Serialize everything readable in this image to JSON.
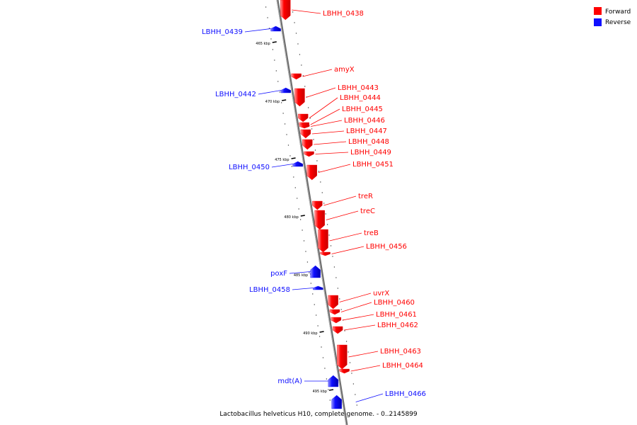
{
  "caption": "Lactobacillus helveticus H10, complete genome. - 0..2145899",
  "legend": [
    {
      "label": "Forward",
      "color": "#ff0000"
    },
    {
      "label": "Reverse",
      "color": "#1010ff"
    }
  ],
  "colors": {
    "forward": "#ff0000",
    "reverse": "#1010ff",
    "backbone": "#888888"
  },
  "scale_labels": [
    "465 kbp",
    "470 kbp",
    "475 kbp",
    "480 kbp",
    "485 kbp",
    "490 kbp",
    "495 kbp"
  ],
  "genes": [
    {
      "name": "LBHH_0438",
      "strand": "forward"
    },
    {
      "name": "LBHH_0439",
      "strand": "reverse"
    },
    {
      "name": "amyX",
      "strand": "forward"
    },
    {
      "name": "LBHH_0442",
      "strand": "reverse"
    },
    {
      "name": "LBHH_0443",
      "strand": "forward"
    },
    {
      "name": "LBHH_0444",
      "strand": "forward"
    },
    {
      "name": "LBHH_0445",
      "strand": "forward"
    },
    {
      "name": "LBHH_0446",
      "strand": "forward"
    },
    {
      "name": "LBHH_0447",
      "strand": "forward"
    },
    {
      "name": "LBHH_0448",
      "strand": "forward"
    },
    {
      "name": "LBHH_0449",
      "strand": "forward"
    },
    {
      "name": "LBHH_0450",
      "strand": "reverse"
    },
    {
      "name": "LBHH_0451",
      "strand": "forward"
    },
    {
      "name": "treR",
      "strand": "forward"
    },
    {
      "name": "treC",
      "strand": "forward"
    },
    {
      "name": "treB",
      "strand": "forward"
    },
    {
      "name": "LBHH_0456",
      "strand": "forward"
    },
    {
      "name": "poxF",
      "strand": "reverse"
    },
    {
      "name": "LBHH_0458",
      "strand": "reverse"
    },
    {
      "name": "uvrX",
      "strand": "forward"
    },
    {
      "name": "LBHH_0460",
      "strand": "forward"
    },
    {
      "name": "LBHH_0461",
      "strand": "forward"
    },
    {
      "name": "LBHH_0462",
      "strand": "forward"
    },
    {
      "name": "LBHH_0463",
      "strand": "forward"
    },
    {
      "name": "LBHH_0464",
      "strand": "forward"
    },
    {
      "name": "mdt(A)",
      "strand": "reverse"
    },
    {
      "name": "LBHH_0466",
      "strand": "reverse"
    }
  ]
}
